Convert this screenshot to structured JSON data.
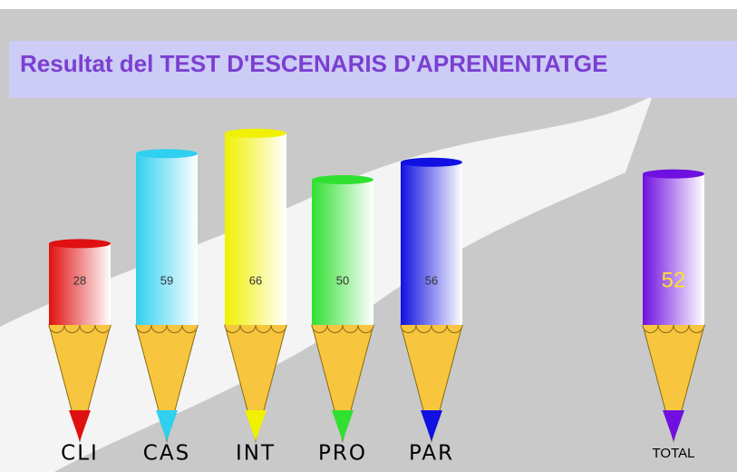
{
  "chart_data": {
    "type": "bar",
    "title": "Resultat del TEST D'ESCENARIS D'APRENENTATGE",
    "categories": [
      "CLI",
      "CAS",
      "INT",
      "PRO",
      "PAR",
      "TOTAL"
    ],
    "values": [
      28,
      59,
      66,
      50,
      56,
      52
    ],
    "colors": [
      "#e01010",
      "#30d0f0",
      "#f0f000",
      "#30e030",
      "#1010e0",
      "#7010e0"
    ]
  }
}
